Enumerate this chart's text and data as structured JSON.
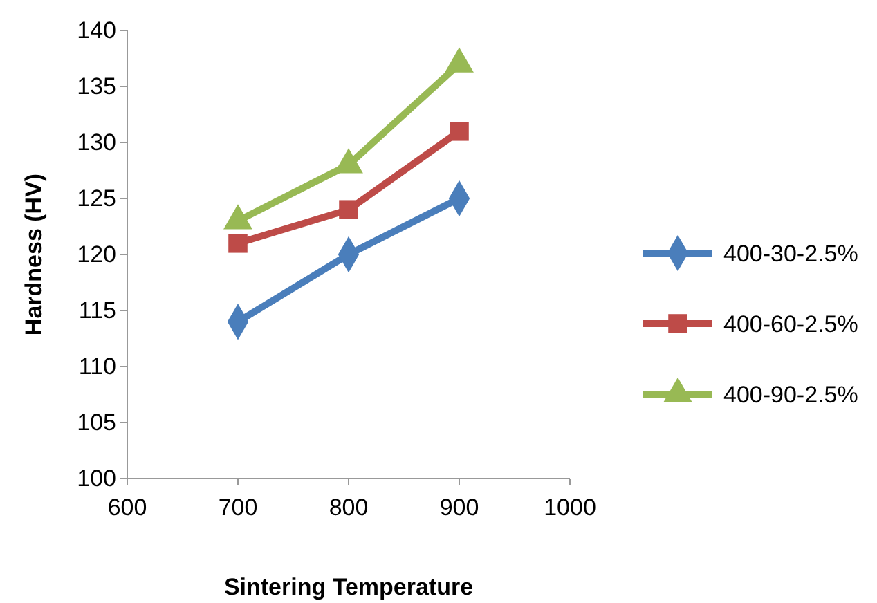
{
  "chart_data": {
    "type": "line",
    "xlabel": "Sintering Temperature",
    "ylabel": "Hardness (HV)",
    "x": [
      700,
      800,
      900
    ],
    "xlim": [
      600,
      1000
    ],
    "xticks": [
      600,
      700,
      800,
      900,
      1000
    ],
    "ylim": [
      100,
      140
    ],
    "yticks": [
      100,
      105,
      110,
      115,
      120,
      125,
      130,
      135,
      140
    ],
    "grid": false,
    "legend": "right",
    "line_style": "solid",
    "series": [
      {
        "name": "400-30-2.5%",
        "color": "#4a7ebb",
        "marker": "diamond",
        "values": [
          114,
          120,
          125
        ]
      },
      {
        "name": "400-60-2.5%",
        "color": "#be4b48",
        "marker": "square",
        "values": [
          121,
          124,
          131
        ]
      },
      {
        "name": "400-90-2.5%",
        "color": "#98b954",
        "marker": "triangle",
        "values": [
          123,
          128,
          137
        ]
      }
    ]
  }
}
